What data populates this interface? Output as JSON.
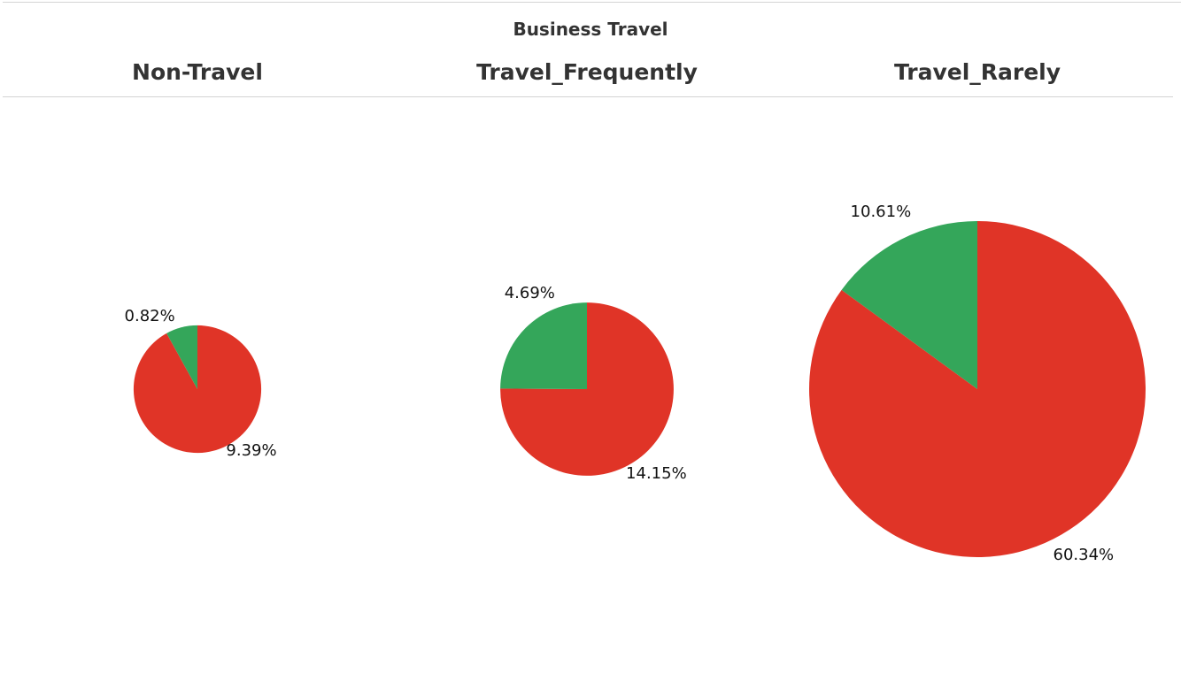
{
  "chart_data": {
    "type": "pie",
    "title": "Business Travel",
    "colors": {
      "red_slice": "#e03427",
      "green_slice": "#34a65a"
    },
    "panels": [
      {
        "category": "Non-Travel",
        "slices": [
          {
            "color": "#34a65a",
            "value": 0.82,
            "label": "0.82%"
          },
          {
            "color": "#e03427",
            "value": 9.39,
            "label": "9.39%"
          }
        ]
      },
      {
        "category": "Travel_Frequently",
        "slices": [
          {
            "color": "#34a65a",
            "value": 4.69,
            "label": "4.69%"
          },
          {
            "color": "#e03427",
            "value": 14.15,
            "label": "14.15%"
          }
        ]
      },
      {
        "category": "Travel_Rarely",
        "slices": [
          {
            "color": "#34a65a",
            "value": 10.61,
            "label": "10.61%"
          },
          {
            "color": "#e03427",
            "value": 60.34,
            "label": "60.34%"
          }
        ]
      }
    ]
  }
}
